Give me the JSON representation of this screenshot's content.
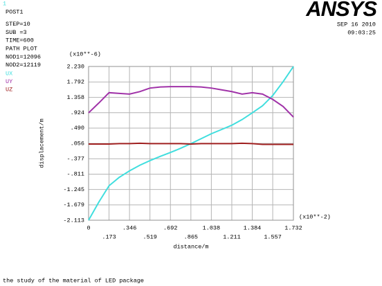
{
  "chart_data": {
    "type": "line",
    "window_number": "1",
    "info": [
      "POST1",
      "STEP=10",
      "SUB =3",
      "TIME=600",
      "PATH PLOT",
      "NOD1=12096",
      "NOD2=12119"
    ],
    "logo": "ANSYS",
    "date": "SEP 16 2010",
    "time": "09:03:25",
    "ylabel": "displacement/m",
    "xlabel": "distance/m",
    "y_multiplier": "(x10**-6)",
    "x_multiplier": "(x10**-2)",
    "caption": "the study of the material of LED package",
    "grid": true,
    "x": [
      0,
      0.087,
      0.173,
      0.26,
      0.346,
      0.433,
      0.519,
      0.606,
      0.692,
      0.779,
      0.865,
      0.952,
      1.038,
      1.125,
      1.211,
      1.298,
      1.384,
      1.471,
      1.557,
      1.645,
      1.732
    ],
    "series": [
      {
        "name": "UX",
        "color": "#40dede",
        "values": [
          -2.113,
          -1.6,
          -1.14,
          -0.9,
          -0.72,
          -0.56,
          -0.43,
          -0.31,
          -0.2,
          -0.08,
          0.05,
          0.19,
          0.33,
          0.45,
          0.57,
          0.73,
          0.92,
          1.12,
          1.41,
          1.8,
          2.23
        ]
      },
      {
        "name": "UY",
        "color": "#a032a8",
        "values": [
          0.92,
          1.2,
          1.49,
          1.47,
          1.45,
          1.52,
          1.62,
          1.65,
          1.66,
          1.66,
          1.66,
          1.65,
          1.62,
          1.57,
          1.52,
          1.45,
          1.49,
          1.45,
          1.3,
          1.1,
          0.8
        ]
      },
      {
        "name": "UZ",
        "color": "#a02020",
        "values": [
          0.04,
          0.04,
          0.04,
          0.05,
          0.05,
          0.06,
          0.05,
          0.05,
          0.05,
          0.05,
          0.04,
          0.05,
          0.05,
          0.05,
          0.05,
          0.06,
          0.05,
          0.03,
          0.03,
          0.03,
          0.03
        ]
      }
    ],
    "xlim": [
      0,
      1.732
    ],
    "ylim": [
      -2.113,
      2.23
    ],
    "xticks": [
      {
        "value": 0,
        "label": "0"
      },
      {
        "value": 0.173,
        "label": ".173"
      },
      {
        "value": 0.346,
        "label": ".346"
      },
      {
        "value": 0.519,
        "label": ".519"
      },
      {
        "value": 0.692,
        "label": ".692"
      },
      {
        "value": 0.865,
        "label": ".865"
      },
      {
        "value": 1.038,
        "label": "1.038"
      },
      {
        "value": 1.211,
        "label": "1.211"
      },
      {
        "value": 1.384,
        "label": "1.384"
      },
      {
        "value": 1.557,
        "label": "1.557"
      },
      {
        "value": 1.732,
        "label": "1.732"
      }
    ],
    "yticks": [
      {
        "value": -2.113,
        "label": "-2.113"
      },
      {
        "value": -1.679,
        "label": "-1.679"
      },
      {
        "value": -1.245,
        "label": "-1.245"
      },
      {
        "value": -0.811,
        "label": "-.811"
      },
      {
        "value": -0.377,
        "label": "-.377"
      },
      {
        "value": 0.056,
        "label": ".056"
      },
      {
        "value": 0.49,
        "label": ".490"
      },
      {
        "value": 0.924,
        "label": ".924"
      },
      {
        "value": 1.358,
        "label": "1.358"
      },
      {
        "value": 1.792,
        "label": "1.792"
      },
      {
        "value": 2.23,
        "label": "2.230"
      }
    ]
  }
}
